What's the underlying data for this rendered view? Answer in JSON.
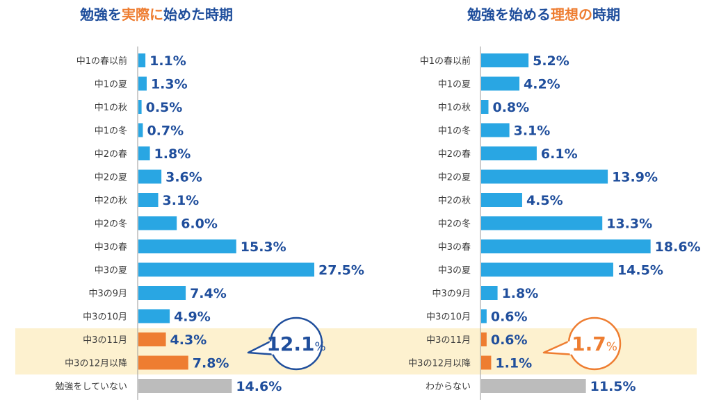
{
  "colors": {
    "bar": "#29a6e3",
    "highlight_bar": "#ee7d31",
    "none_bar": "#bcbcbc",
    "band": "#fdf1cf",
    "title": "#1f4e9c",
    "accent": "#ee7d31",
    "axis": "#9a9a9a"
  },
  "chart_data": [
    {
      "type": "bar",
      "orientation": "horizontal",
      "title": "勉強を実際に始めた時期",
      "title_parts": [
        {
          "text": "勉強を",
          "highlight": false
        },
        {
          "text": "実際に",
          "highlight": true
        },
        {
          "text": "始めた時期",
          "highlight": false
        }
      ],
      "categories": [
        "中1の春以前",
        "中1の夏",
        "中1の秋",
        "中1の冬",
        "中2の春",
        "中2の夏",
        "中2の秋",
        "中2の冬",
        "中3の春",
        "中3の夏",
        "中3の9月",
        "中3の10月",
        "中3の11月",
        "中3の12月以降",
        "勉強をしていない"
      ],
      "values": [
        1.1,
        1.3,
        0.5,
        0.7,
        1.8,
        3.6,
        3.1,
        6.0,
        15.3,
        27.5,
        7.4,
        4.9,
        4.3,
        7.8,
        14.6
      ],
      "value_labels": [
        "1.1%",
        "1.3%",
        "0.5%",
        "0.7%",
        "1.8%",
        "3.6%",
        "3.1%",
        "6.0%",
        "15.3%",
        "27.5%",
        "7.4%",
        "4.9%",
        "4.3%",
        "7.8%",
        "14.6%"
      ],
      "highlighted": [
        12,
        13
      ],
      "none_category": 14,
      "callout": {
        "number": "12.1",
        "unit": "%",
        "color": "#1f4e9c"
      }
    },
    {
      "type": "bar",
      "orientation": "horizontal",
      "title": "勉強を始める理想の時期",
      "title_parts": [
        {
          "text": "勉強を始める",
          "highlight": false
        },
        {
          "text": "理想の",
          "highlight": true
        },
        {
          "text": "時期",
          "highlight": false
        }
      ],
      "categories": [
        "中1の春以前",
        "中1の夏",
        "中1の秋",
        "中1の冬",
        "中2の春",
        "中2の夏",
        "中2の秋",
        "中2の冬",
        "中3の春",
        "中3の夏",
        "中3の9月",
        "中3の10月",
        "中3の11月",
        "中3の12月以降",
        "わからない"
      ],
      "values": [
        5.2,
        4.2,
        0.8,
        3.1,
        6.1,
        13.9,
        4.5,
        13.3,
        18.6,
        14.5,
        1.8,
        0.6,
        0.6,
        1.1,
        11.5
      ],
      "value_labels": [
        "5.2%",
        "4.2%",
        "0.8%",
        "3.1%",
        "6.1%",
        "13.9%",
        "4.5%",
        "13.3%",
        "18.6%",
        "14.5%",
        "1.8%",
        "0.6%",
        "0.6%",
        "1.1%",
        "11.5%"
      ],
      "highlighted": [
        12,
        13
      ],
      "none_category": 14,
      "callout": {
        "number": "1.7",
        "unit": "%",
        "color": "#ee7d31"
      }
    }
  ]
}
